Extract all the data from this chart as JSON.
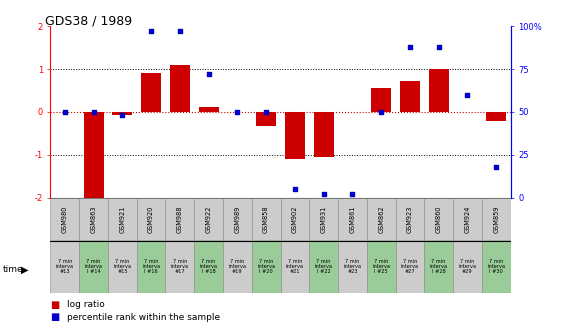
{
  "title": "GDS38 / 1989",
  "samples": [
    "GSM980",
    "GSM863",
    "GSM921",
    "GSM920",
    "GSM988",
    "GSM922",
    "GSM989",
    "GSM858",
    "GSM902",
    "GSM931",
    "GSM861",
    "GSM862",
    "GSM923",
    "GSM860",
    "GSM924",
    "GSM859"
  ],
  "log_ratio": [
    0.0,
    -2.0,
    -0.08,
    0.9,
    1.1,
    0.12,
    0.0,
    -0.32,
    -1.1,
    -1.05,
    0.0,
    0.55,
    0.72,
    1.0,
    0.0,
    -0.22
  ],
  "percentile": [
    50,
    50,
    48,
    97,
    97,
    72,
    50,
    50,
    5,
    2,
    2,
    50,
    88,
    88,
    60,
    18
  ],
  "bar_color": "#cc0000",
  "dot_color": "#0000cc",
  "bg_color": "#ffffff",
  "zero_line_color": "#cc0000",
  "ylim": [
    -2,
    2
  ],
  "y2lim": [
    0,
    100
  ],
  "yticks": [
    -2,
    -1,
    0,
    1,
    2
  ],
  "y2ticks": [
    0,
    25,
    50,
    75,
    100
  ],
  "bar_width": 0.7,
  "sample_bg_color": "#cccccc",
  "interval_bg": [
    "#cccccc",
    "#99cc99",
    "#cccccc",
    "#99cc99",
    "#cccccc",
    "#99cc99",
    "#cccccc",
    "#99cc99",
    "#cccccc",
    "#99cc99",
    "#cccccc",
    "#99cc99",
    "#cccccc",
    "#99cc99",
    "#cccccc",
    "#99cc99"
  ],
  "interval_texts": [
    "7 min\ninterva\n#13",
    "7 min\ninterva\nl #14",
    "7 min\ninterva\n#15",
    "7 min\ninterva\nl #16",
    "7 min\ninterva\n#17",
    "7 min\ninterva\nl #18",
    "7 min\ninterva\n#19",
    "7 min\ninterva\nl #20",
    "7 min\ninterva\n#21",
    "7 min\ninterva\nl #22",
    "7 min\ninterva\n#23",
    "7 min\ninterva\nl #25",
    "7 min\ninterva\n#27",
    "7 min\ninterva\nl #28",
    "7 min\ninterva\n#29",
    "7 min\ninterva\nl #30"
  ]
}
